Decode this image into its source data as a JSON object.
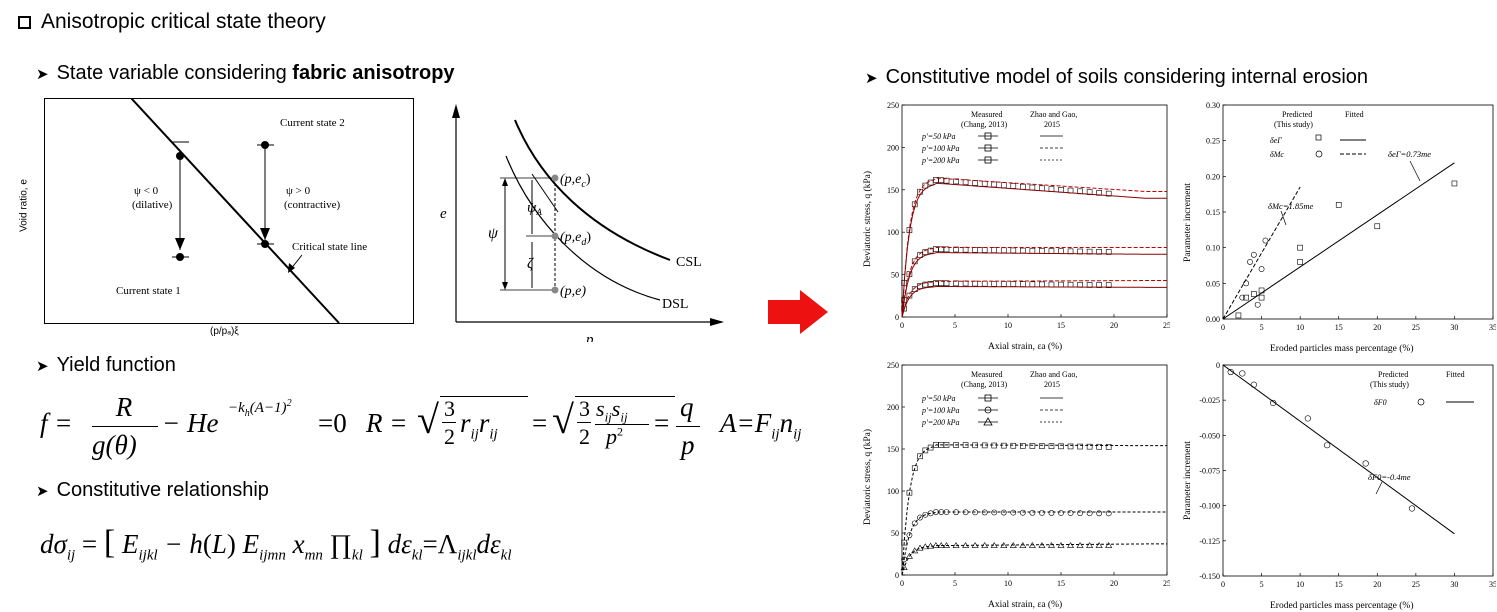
{
  "heading": "Anisotropic critical state theory",
  "left": {
    "bullet1_plain": "State variable considering ",
    "bullet1_bold": "fabric anisotropy",
    "bullet2": "Yield function",
    "bullet3": "Constitutive relationship"
  },
  "right": {
    "bullet": "Constitutive model of soils considering internal erosion"
  },
  "fig_left": {
    "y_label": "Void ratio, e",
    "x_label": "(p/pₐ)ξ",
    "current1": "Current state 1",
    "current2": "Current state 2",
    "psi_neg": "ψ < 0",
    "dilative": "(dilative)",
    "psi_pos": "ψ > 0",
    "contractive": "(contractive)",
    "csl_label": "Critical state line"
  },
  "fig_mid": {
    "e_axis": "e",
    "p_axis": "p",
    "pec": "(p,e",
    "ped": "(p,e",
    "pe": "(p,e)",
    "sub_c": "c",
    "sub_d": "d",
    "csl": "CSL",
    "dsl": "DSL",
    "psi": "ψ",
    "psiA": "ψ",
    "sub_A": "A",
    "zeta": "ζ"
  },
  "charts": {
    "c1": {
      "ylabel": "Deviatoric stress, q (kPa)",
      "xlabel": "Axial strain, εa (%)",
      "yticks": [
        "0",
        "50",
        "100",
        "150",
        "200",
        "250"
      ],
      "xticks": [
        "0",
        "5",
        "10",
        "15",
        "20",
        "25"
      ],
      "legend_h1": "Measured",
      "legend_h1b": "(Chang, 2013)",
      "legend_h2": "Zhao and Gao,",
      "legend_h2b": "2015",
      "legend_rows": [
        "p'=50 kPa",
        "p'=100 kPa",
        "p'=200 kPa"
      ]
    },
    "c2": {
      "ylabel": "Parameter increment",
      "xlabel": "Eroded particles mass percentage (%)",
      "yticks": [
        "0.00",
        "0.05",
        "0.10",
        "0.15",
        "0.20",
        "0.25",
        "0.30"
      ],
      "xticks": [
        "0",
        "5",
        "10",
        "15",
        "20",
        "25",
        "30",
        "35"
      ],
      "legend_h1": "Predicted",
      "legend_h1b": "(This study)",
      "legend_h2": "Fitted",
      "legend_r1": "δeΓ",
      "legend_r2": "δMc",
      "ann1": "δeΓ=0.73me",
      "ann2": "δMc=1.85me"
    },
    "c3": {
      "ylabel": "Deviatoric stress, q (kPa)",
      "xlabel": "Axial strain, εa (%)",
      "yticks": [
        "0",
        "50",
        "100",
        "150",
        "200",
        "250"
      ],
      "xticks": [
        "0",
        "5",
        "10",
        "15",
        "20",
        "25"
      ],
      "legend_h1": "Measured",
      "legend_h1b": "(Chang, 2013)",
      "legend_h2": "Zhao and Gao,",
      "legend_h2b": "2015",
      "legend_rows": [
        "p'=50 kPa",
        "p'=100 kPa",
        "p'=200 kPa"
      ]
    },
    "c4": {
      "ylabel": "Parameter increment",
      "xlabel": "Eroded particles mass percentage (%)",
      "yticks": [
        "0",
        "-0.025",
        "-0.050",
        "-0.075",
        "-0.100",
        "-0.125",
        "-0.150"
      ],
      "xticks": [
        "0",
        "5",
        "10",
        "15",
        "20",
        "25",
        "30",
        "35"
      ],
      "legend_h1": "Predicted",
      "legend_h1b": "(This study)",
      "legend_h2": "Fitted",
      "legend_r1": "δF0",
      "ann1": "δF0=-0.4me"
    }
  },
  "colors": {
    "arrow": "#ee1111",
    "dark_red": "#8b0000"
  }
}
